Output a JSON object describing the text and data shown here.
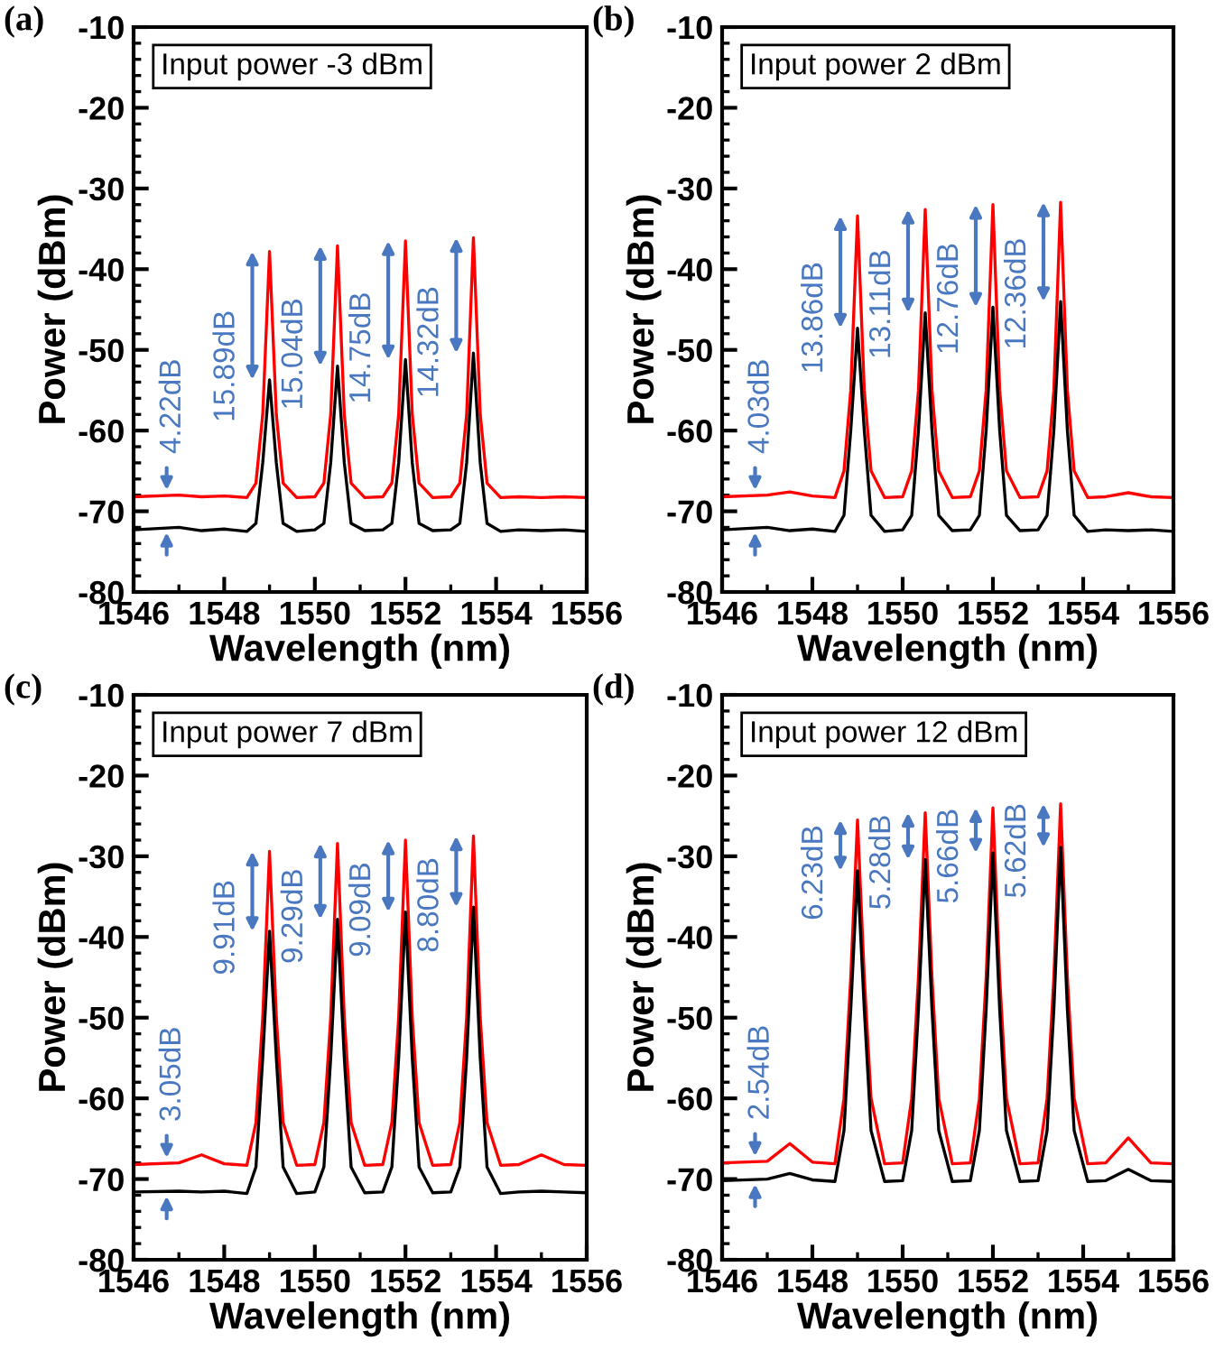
{
  "chart_data": [
    {
      "type": "line",
      "title": "(a)",
      "subtitle": "Input power -3 dBm",
      "xlabel": "Wavelength (nm)",
      "ylabel": "Power (dBm)",
      "x": [
        1546.0,
        1547.0,
        1547.5,
        1548.0,
        1548.5,
        1548.7,
        1548.85,
        1549.0,
        1549.15,
        1549.3,
        1549.6,
        1550.0,
        1550.2,
        1550.35,
        1550.5,
        1550.65,
        1550.8,
        1551.1,
        1551.5,
        1551.7,
        1551.85,
        1552.0,
        1552.15,
        1552.3,
        1552.6,
        1553.0,
        1553.2,
        1553.35,
        1553.5,
        1553.65,
        1553.8,
        1554.1,
        1554.5,
        1555.0,
        1555.5,
        1556.0
      ],
      "series": [
        {
          "color": "#ff0000",
          "values": [
            -68.2,
            -68.0,
            -68.2,
            -68.1,
            -68.3,
            -66.5,
            -58,
            -37.8,
            -58,
            -66.5,
            -68.3,
            -68.2,
            -66.5,
            -58,
            -37.1,
            -58,
            -66.5,
            -68.3,
            -68.2,
            -66.5,
            -58,
            -36.5,
            -58,
            -66.5,
            -68.3,
            -68.2,
            -66.5,
            -58,
            -36.1,
            -58,
            -66.5,
            -68.3,
            -68.2,
            -68.3,
            -68.2,
            -68.3
          ]
        },
        {
          "color": "#000000",
          "values": [
            -72.3,
            -72.0,
            -72.4,
            -72.2,
            -72.5,
            -71.5,
            -64,
            -53.7,
            -64,
            -71.5,
            -72.5,
            -72.3,
            -71.5,
            -64,
            -52.0,
            -64,
            -71.5,
            -72.4,
            -72.3,
            -71.5,
            -64,
            -51.2,
            -64,
            -71.5,
            -72.4,
            -72.3,
            -71.5,
            -64,
            -50.4,
            -64,
            -71.5,
            -72.5,
            -72.3,
            -72.4,
            -72.3,
            -72.5
          ]
        }
      ],
      "annotations": [
        "4.22dB",
        "15.89dB",
        "15.04dB",
        "14.75dB",
        "14.32dB"
      ],
      "xlim": [
        1546,
        1556
      ],
      "xticks": [
        1546,
        1548,
        1550,
        1552,
        1554,
        1556
      ],
      "ylim": [
        -80,
        -10
      ],
      "yticks": [
        -80,
        -70,
        -60,
        -50,
        -40,
        -30,
        -20,
        -10
      ],
      "line_style": "solid",
      "marker": "none",
      "grid": false,
      "legend": false
    },
    {
      "type": "line",
      "title": "(b)",
      "subtitle": "Input power 2 dBm",
      "xlabel": "Wavelength (nm)",
      "ylabel": "Power (dBm)",
      "x": [
        1546.0,
        1547.0,
        1547.5,
        1548.0,
        1548.5,
        1548.7,
        1548.85,
        1549.0,
        1549.15,
        1549.3,
        1549.6,
        1550.0,
        1550.2,
        1550.35,
        1550.5,
        1550.65,
        1550.8,
        1551.1,
        1551.5,
        1551.7,
        1551.85,
        1552.0,
        1552.15,
        1552.3,
        1552.6,
        1553.0,
        1553.2,
        1553.35,
        1553.5,
        1553.65,
        1553.8,
        1554.1,
        1554.5,
        1555.0,
        1555.5,
        1556.0
      ],
      "series": [
        {
          "color": "#ff0000",
          "values": [
            -68.2,
            -68.0,
            -67.6,
            -68.1,
            -68.3,
            -65,
            -55,
            -33.4,
            -55,
            -65,
            -68.3,
            -68.2,
            -65,
            -55,
            -32.6,
            -55,
            -65,
            -68.3,
            -68.2,
            -65,
            -55,
            -32.0,
            -55,
            -65,
            -68.3,
            -68.2,
            -65,
            -55,
            -31.7,
            -55,
            -65,
            -68.3,
            -68.2,
            -67.7,
            -68.2,
            -68.3
          ]
        },
        {
          "color": "#000000",
          "values": [
            -72.3,
            -72.0,
            -72.4,
            -72.2,
            -72.5,
            -70.5,
            -60,
            -47.3,
            -60,
            -70.5,
            -72.5,
            -72.3,
            -70.5,
            -60,
            -45.4,
            -60,
            -70.5,
            -72.4,
            -72.3,
            -70.5,
            -60,
            -44.7,
            -60,
            -70.5,
            -72.4,
            -72.3,
            -70.5,
            -60,
            -44.0,
            -60,
            -70.5,
            -72.5,
            -72.3,
            -72.4,
            -72.3,
            -72.5
          ]
        }
      ],
      "annotations": [
        "4.03dB",
        "13.86dB",
        "13.11dB",
        "12.76dB",
        "12.36dB"
      ],
      "xlim": [
        1546,
        1556
      ],
      "xticks": [
        1546,
        1548,
        1550,
        1552,
        1554,
        1556
      ],
      "ylim": [
        -80,
        -10
      ],
      "yticks": [
        -80,
        -70,
        -60,
        -50,
        -40,
        -30,
        -20,
        -10
      ],
      "line_style": "solid",
      "marker": "none",
      "grid": false,
      "legend": false
    },
    {
      "type": "line",
      "title": "(c)",
      "subtitle": "Input power 7 dBm",
      "xlabel": "Wavelength (nm)",
      "ylabel": "Power (dBm)",
      "x": [
        1546.0,
        1547.0,
        1547.5,
        1548.0,
        1548.5,
        1548.7,
        1548.85,
        1549.0,
        1549.15,
        1549.3,
        1549.6,
        1550.0,
        1550.2,
        1550.35,
        1550.5,
        1550.65,
        1550.8,
        1551.1,
        1551.5,
        1551.7,
        1551.85,
        1552.0,
        1552.15,
        1552.3,
        1552.6,
        1553.0,
        1553.2,
        1553.35,
        1553.5,
        1553.65,
        1553.8,
        1554.1,
        1554.5,
        1555.0,
        1555.5,
        1556.0
      ],
      "series": [
        {
          "color": "#ff0000",
          "values": [
            -68.2,
            -68.0,
            -67.0,
            -68.1,
            -68.3,
            -63,
            -50,
            -29.4,
            -50,
            -63,
            -68.3,
            -68.2,
            -63,
            -50,
            -28.4,
            -50,
            -63,
            -68.3,
            -68.2,
            -63,
            -50,
            -28.0,
            -50,
            -63,
            -68.3,
            -68.2,
            -63,
            -50,
            -27.5,
            -50,
            -63,
            -68.3,
            -68.2,
            -67.0,
            -68.2,
            -68.3
          ]
        },
        {
          "color": "#000000",
          "values": [
            -71.6,
            -71.5,
            -71.6,
            -71.5,
            -71.8,
            -68.5,
            -55,
            -39.3,
            -55,
            -68.5,
            -71.8,
            -71.6,
            -68.5,
            -55,
            -37.8,
            -55,
            -68.5,
            -71.7,
            -71.6,
            -68.5,
            -55,
            -36.9,
            -55,
            -68.5,
            -71.7,
            -71.6,
            -68.5,
            -55,
            -36.3,
            -55,
            -68.5,
            -71.8,
            -71.6,
            -71.5,
            -71.6,
            -71.7
          ]
        }
      ],
      "annotations": [
        "3.05dB",
        "9.91dB",
        "9.29dB",
        "9.09dB",
        "8.80dB"
      ],
      "xlim": [
        1546,
        1556
      ],
      "xticks": [
        1546,
        1548,
        1550,
        1552,
        1554,
        1556
      ],
      "ylim": [
        -80,
        -10
      ],
      "yticks": [
        -80,
        -70,
        -60,
        -50,
        -40,
        -30,
        -20,
        -10
      ],
      "line_style": "solid",
      "marker": "none",
      "grid": false,
      "legend": false
    },
    {
      "type": "line",
      "title": "(d)",
      "subtitle": "Input power 12 dBm",
      "xlabel": "Wavelength (nm)",
      "ylabel": "Power (dBm)",
      "x": [
        1546.0,
        1547.0,
        1547.5,
        1548.0,
        1548.5,
        1548.7,
        1548.85,
        1549.0,
        1549.15,
        1549.3,
        1549.6,
        1550.0,
        1550.2,
        1550.35,
        1550.5,
        1550.65,
        1550.8,
        1551.1,
        1551.5,
        1551.7,
        1551.85,
        1552.0,
        1552.15,
        1552.3,
        1552.6,
        1553.0,
        1553.2,
        1553.35,
        1553.5,
        1553.65,
        1553.8,
        1554.1,
        1554.5,
        1555.0,
        1555.5,
        1556.0
      ],
      "series": [
        {
          "color": "#ff0000",
          "values": [
            -68.0,
            -67.8,
            -65.6,
            -67.9,
            -68.1,
            -60,
            -45,
            -25.5,
            -45,
            -60,
            -68.1,
            -68.0,
            -60,
            -45,
            -24.6,
            -45,
            -60,
            -68.1,
            -68.0,
            -60,
            -45,
            -24.0,
            -45,
            -60,
            -68.1,
            -68.0,
            -60,
            -45,
            -23.5,
            -45,
            -60,
            -68.1,
            -68.0,
            -64.9,
            -68.0,
            -68.1
          ]
        },
        {
          "color": "#000000",
          "values": [
            -70.2,
            -70.0,
            -69.3,
            -70.1,
            -70.3,
            -64,
            -49,
            -31.8,
            -49,
            -64,
            -70.3,
            -70.2,
            -64,
            -49,
            -30.4,
            -49,
            -64,
            -70.3,
            -70.2,
            -64,
            -49,
            -29.6,
            -49,
            -64,
            -70.3,
            -70.2,
            -64,
            -49,
            -28.9,
            -49,
            -64,
            -70.3,
            -70.2,
            -68.8,
            -70.2,
            -70.3
          ]
        }
      ],
      "annotations": [
        "2.54dB",
        "6.23dB",
        "5.28dB",
        "5.66dB",
        "5.62dB"
      ],
      "xlim": [
        1546,
        1556
      ],
      "xticks": [
        1546,
        1548,
        1550,
        1552,
        1554,
        1556
      ],
      "ylim": [
        -80,
        -10
      ],
      "yticks": [
        -80,
        -70,
        -60,
        -50,
        -40,
        -30,
        -20,
        -10
      ],
      "line_style": "solid",
      "marker": "none",
      "grid": false,
      "legend": false
    }
  ]
}
